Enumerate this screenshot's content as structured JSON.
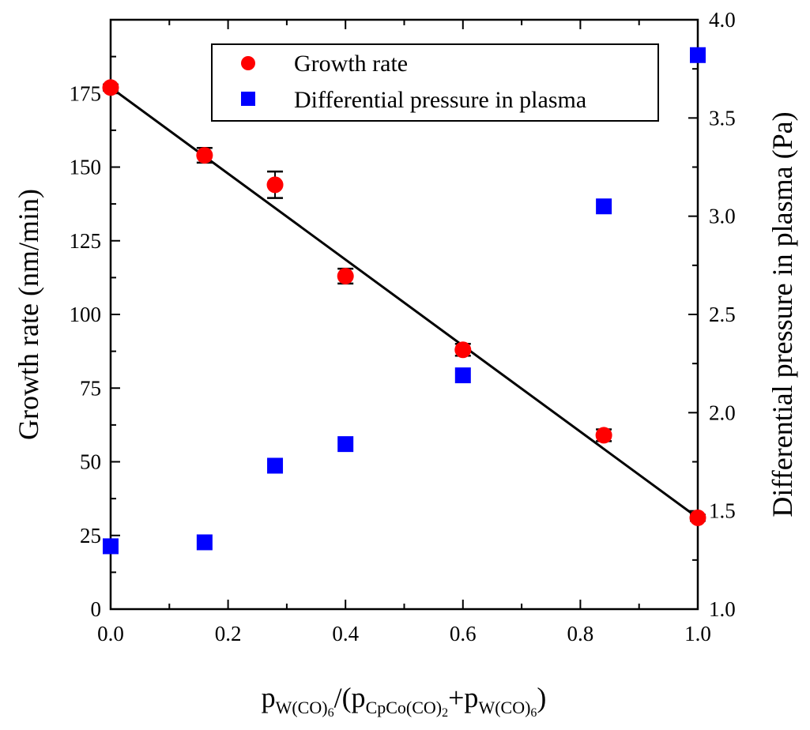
{
  "chart_data": {
    "type": "scatter",
    "xlabel": {
      "p1": "p",
      "w1": "W(CO)",
      "n1": "6",
      "mid": "/(p",
      "c": "CpCo(CO)",
      "n2": "2",
      "plus": "+p",
      "w2": "W(CO)",
      "n3": "6",
      "close": ")"
    },
    "ylabel_left": "Growth rate (nm/min)",
    "ylabel_right": "Differential pressure in plasma (Pa)",
    "xlim": [
      0.0,
      1.0
    ],
    "ylim_left": [
      0,
      200
    ],
    "ylim_right": [
      1.0,
      4.0
    ],
    "x_ticks": [
      "0.0",
      "0.2",
      "0.4",
      "0.6",
      "0.8",
      "1.0"
    ],
    "y_left_ticks": [
      "0",
      "25",
      "50",
      "75",
      "100",
      "125",
      "150",
      "175"
    ],
    "y_right_ticks": [
      "1.0",
      "1.5",
      "2.0",
      "2.5",
      "3.0",
      "3.5",
      "4.0"
    ],
    "legend_position": "top-right",
    "series": [
      {
        "name": "Growth rate",
        "axis": "left",
        "marker": "circle",
        "color": "#ff0000",
        "points": [
          {
            "x": 0.0,
            "y": 177,
            "err": 1
          },
          {
            "x": 0.16,
            "y": 154,
            "err": 2.5
          },
          {
            "x": 0.28,
            "y": 144,
            "err": 4.5
          },
          {
            "x": 0.4,
            "y": 113,
            "err": 2.5
          },
          {
            "x": 0.6,
            "y": 88,
            "err": 2
          },
          {
            "x": 0.84,
            "y": 59,
            "err": 2
          },
          {
            "x": 1.0,
            "y": 31,
            "err": 1
          }
        ]
      },
      {
        "name": "Differential pressure in plasma",
        "axis": "right",
        "marker": "square",
        "color": "#0000ff",
        "points": [
          {
            "x": 0.0,
            "y": 1.32
          },
          {
            "x": 0.16,
            "y": 1.34
          },
          {
            "x": 0.28,
            "y": 1.73
          },
          {
            "x": 0.4,
            "y": 1.84
          },
          {
            "x": 0.6,
            "y": 2.19
          },
          {
            "x": 0.84,
            "y": 3.05
          },
          {
            "x": 1.0,
            "y": 3.82
          }
        ]
      }
    ],
    "fit_line": {
      "axis": "left",
      "color": "#000000",
      "x": [
        0.0,
        1.0
      ],
      "y": [
        177,
        31
      ]
    }
  }
}
